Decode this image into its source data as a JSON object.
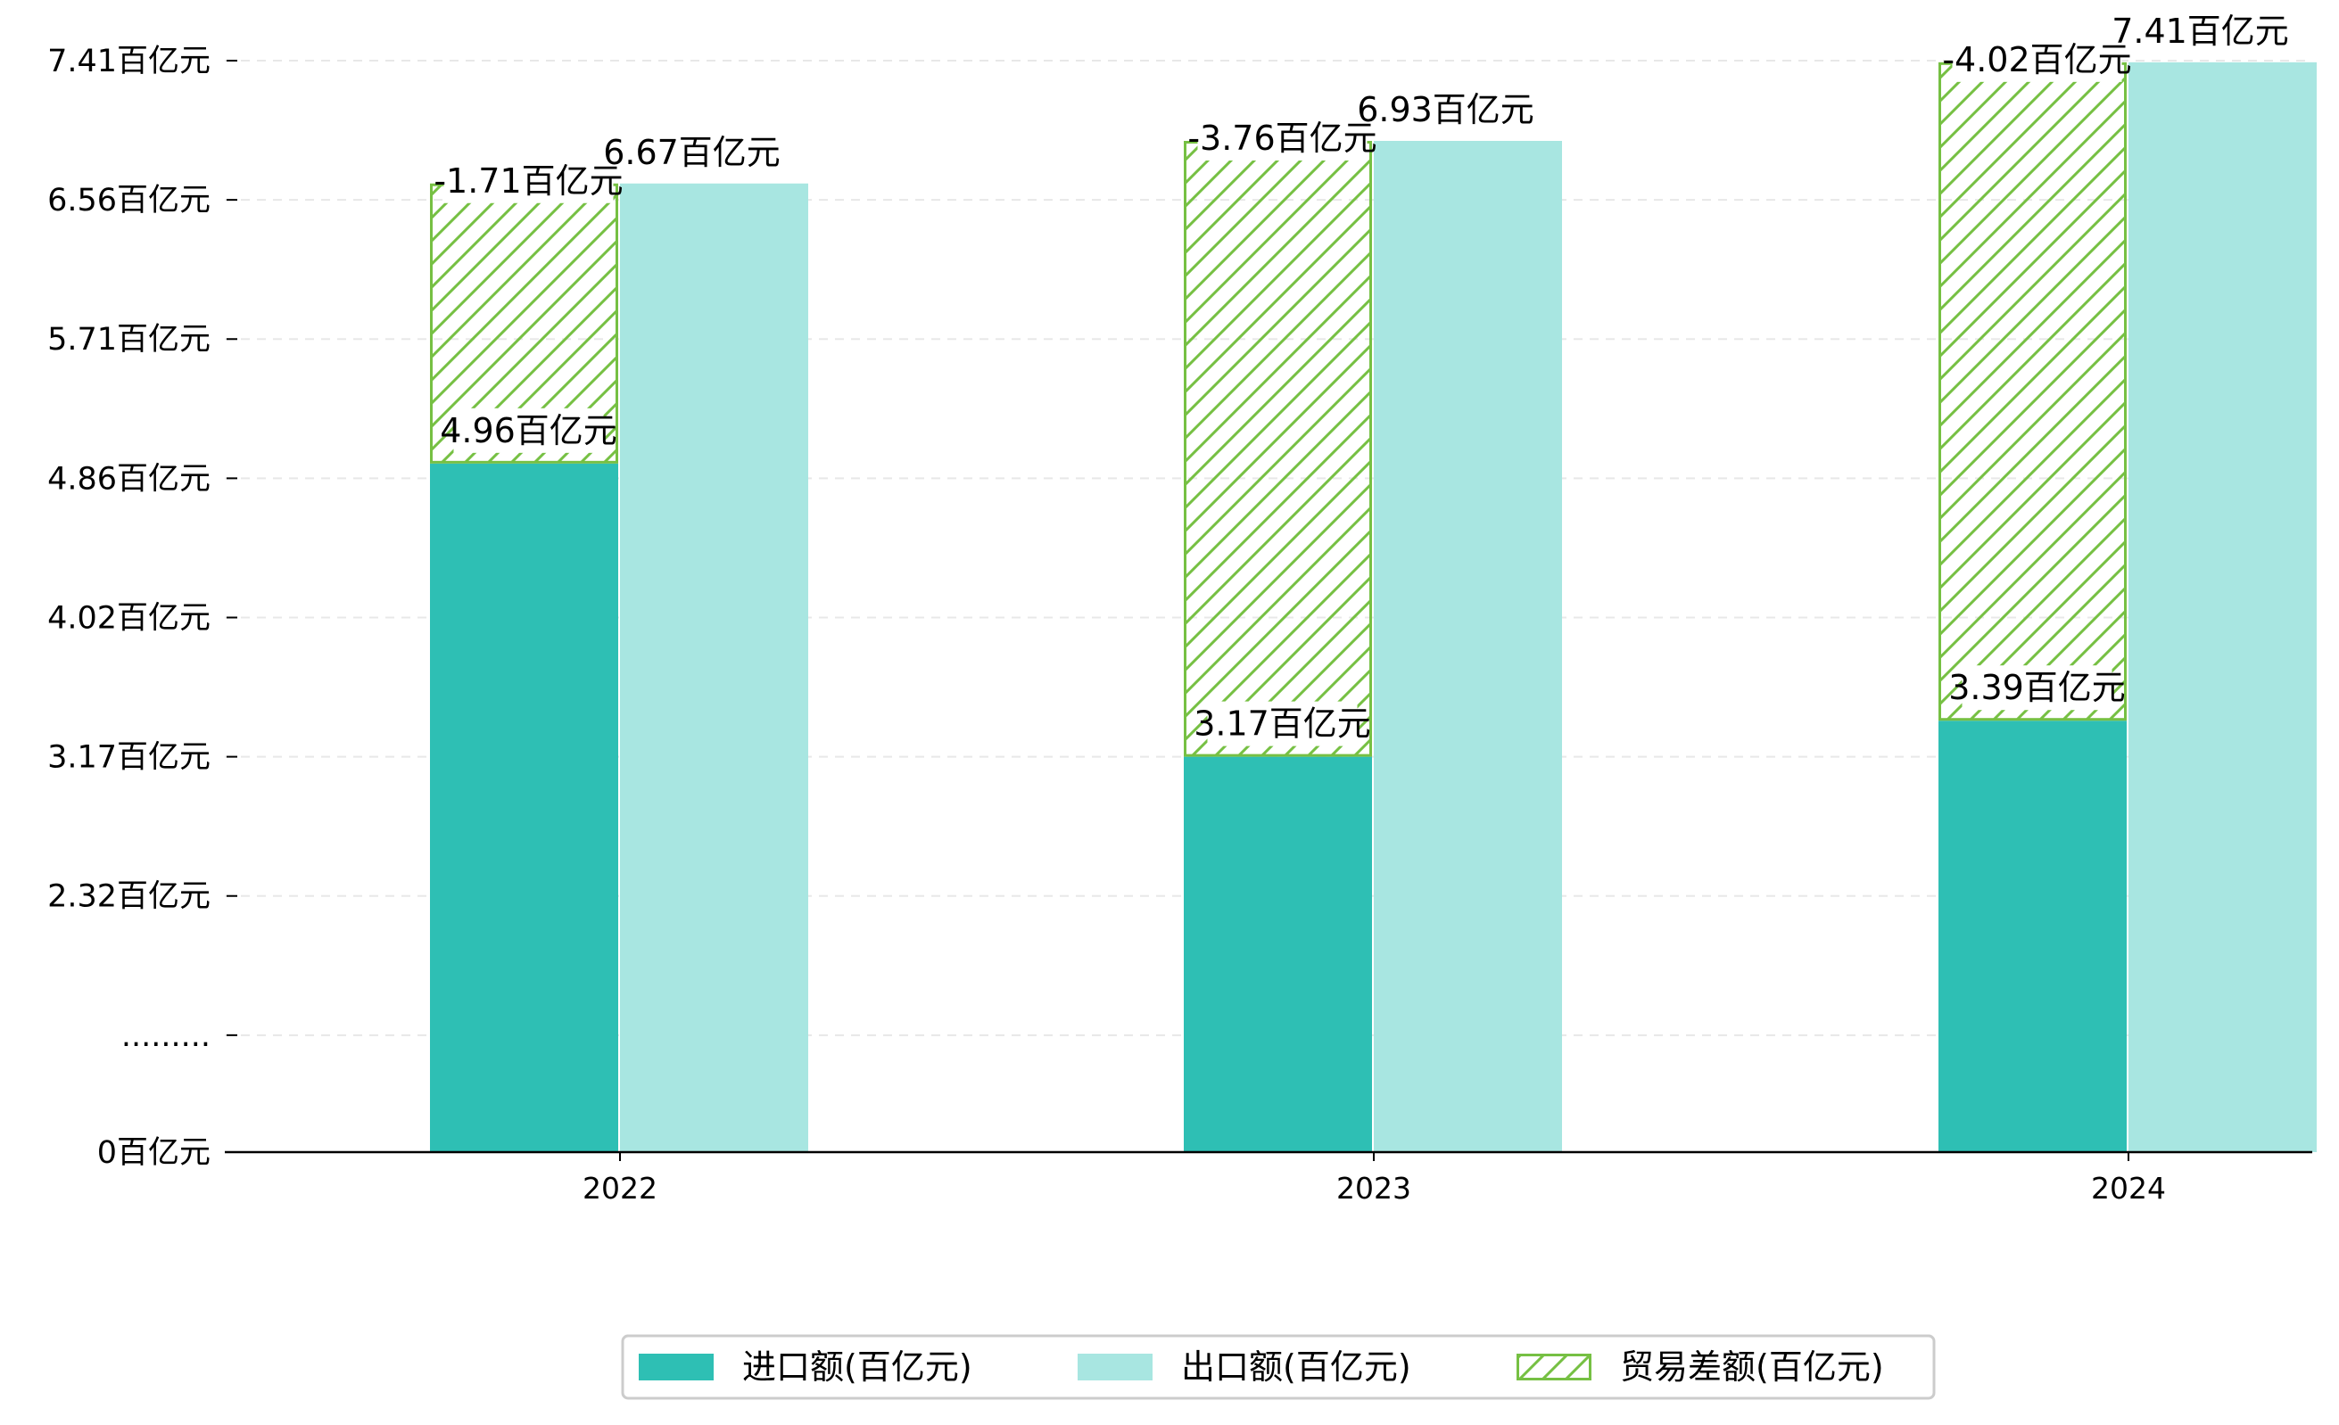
{
  "chart_data": {
    "type": "bar",
    "title": "",
    "xlabel": "",
    "ylabel": "",
    "categories": [
      "2022",
      "2023",
      "2024"
    ],
    "series": [
      {
        "name": "进口额(百亿元)",
        "values": [
          4.96,
          3.17,
          3.39
        ],
        "color": "#2ebfb4",
        "labels": [
          "4.96百亿元",
          "3.17百亿元",
          "3.39百亿元"
        ]
      },
      {
        "name": "出口额(百亿元)",
        "values": [
          6.67,
          6.93,
          7.41
        ],
        "color": "#a8e6e1",
        "labels": [
          "6.67百亿元",
          "6.93百亿元",
          "7.41百亿元"
        ]
      },
      {
        "name": "贸易差额(百亿元)",
        "values": [
          -1.71,
          -3.76,
          -4.02
        ],
        "color": "#76c043",
        "hatched": true,
        "labels": [
          "-1.71百亿元",
          "-3.76百亿元",
          "-4.02百亿元"
        ]
      }
    ],
    "y_ticks": [
      {
        "value": 0,
        "label": "0百亿元"
      },
      {
        "value": 0.84,
        "label": "........."
      },
      {
        "value": 1.84,
        "label": "2.32百亿元"
      },
      {
        "value": 2.84,
        "label": "3.17百亿元"
      },
      {
        "value": 3.84,
        "label": "4.02百亿元"
      },
      {
        "value": 4.84,
        "label": "4.86百亿元"
      },
      {
        "value": 5.84,
        "label": "5.71百亿元"
      },
      {
        "value": 6.84,
        "label": "6.56百亿元"
      },
      {
        "value": 7.84,
        "label": "7.41百亿元"
      }
    ],
    "y_axis_note": "broken axis: labels above the dotted break are spaced 0.85 百亿元 apart",
    "grid": true,
    "legend_position": "bottom-center"
  }
}
